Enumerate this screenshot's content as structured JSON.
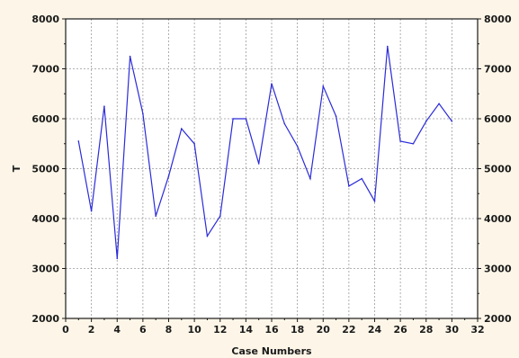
{
  "chart_data": {
    "type": "line",
    "title": "",
    "xlabel": "Case Numbers",
    "ylabel": "T",
    "xlim": [
      0,
      32
    ],
    "ylim": [
      2000,
      8000
    ],
    "x_ticks": [
      "0",
      "2",
      "4",
      "6",
      "8",
      "10",
      "12",
      "14",
      "16",
      "18",
      "20",
      "22",
      "24",
      "26",
      "28",
      "30",
      "32"
    ],
    "y_ticks": [
      "2000",
      "3000",
      "4000",
      "5000",
      "6000",
      "7000",
      "8000"
    ],
    "y_ticks_right": [
      "2000",
      "3000",
      "4000",
      "5000",
      "6000",
      "7000",
      "8000"
    ],
    "grid": true,
    "background": "#fdf6e8",
    "plot_background": "#ffffff",
    "series": [
      {
        "color": "#2b2bd9",
        "x": [
          1,
          2,
          3,
          4,
          5,
          6,
          7,
          8,
          9,
          10,
          11,
          12,
          13,
          14,
          15,
          16,
          17,
          18,
          19,
          20,
          21,
          22,
          23,
          24,
          25,
          26,
          27,
          28,
          29,
          30
        ],
        "y": [
          5550,
          4150,
          6250,
          3200,
          7250,
          6100,
          4050,
          4850,
          5800,
          5500,
          3650,
          4050,
          6000,
          6000,
          5100,
          6700,
          5900,
          5450,
          4800,
          6650,
          6050,
          4650,
          4800,
          4350,
          7450,
          5550,
          5500,
          5950,
          6300,
          5950
        ]
      }
    ]
  }
}
